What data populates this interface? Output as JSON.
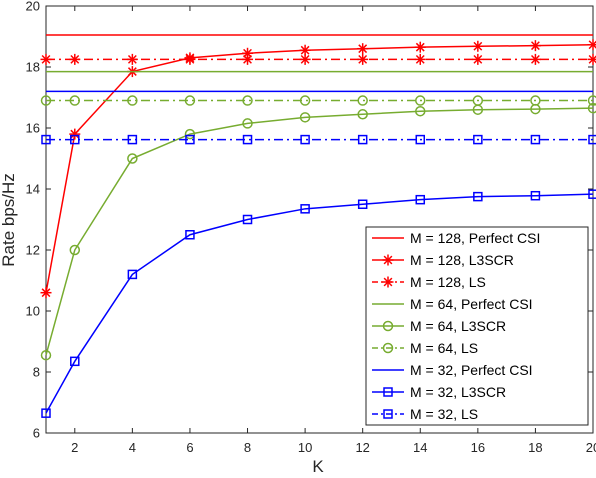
{
  "chart_data": {
    "type": "line",
    "xlabel": "K",
    "ylabel": "Rate bps/Hz",
    "xlim": [
      1,
      20
    ],
    "ylim": [
      6,
      20
    ],
    "xticks": [
      2,
      4,
      6,
      8,
      10,
      12,
      14,
      16,
      18,
      20
    ],
    "yticks": [
      6,
      8,
      10,
      12,
      14,
      16,
      18,
      20
    ],
    "grid": false,
    "legend_position": "bottom-right",
    "x": [
      1,
      2,
      4,
      6,
      8,
      10,
      12,
      14,
      16,
      18,
      20
    ],
    "series": [
      {
        "name": "M = 128, Perfect CSI",
        "color": "#ff0000",
        "dash": "solid",
        "marker": "none",
        "values": [
          19.05,
          19.05,
          19.05,
          19.05,
          19.05,
          19.05,
          19.05,
          19.05,
          19.05,
          19.05,
          19.05
        ]
      },
      {
        "name": "M = 128, L3SCR",
        "color": "#ff0000",
        "dash": "solid",
        "marker": "star",
        "values": [
          10.6,
          15.8,
          17.85,
          18.3,
          18.45,
          18.55,
          18.6,
          18.65,
          18.68,
          18.7,
          18.73
        ]
      },
      {
        "name": "M = 128, LS",
        "color": "#ff0000",
        "dash": "dashdot",
        "marker": "star",
        "values": [
          18.25,
          18.25,
          18.25,
          18.25,
          18.25,
          18.25,
          18.25,
          18.25,
          18.25,
          18.25,
          18.25
        ]
      },
      {
        "name": "M = 64, Perfect CSI",
        "color": "#77ac30",
        "dash": "solid",
        "marker": "none",
        "values": [
          17.85,
          17.85,
          17.85,
          17.85,
          17.85,
          17.85,
          17.85,
          17.85,
          17.85,
          17.85,
          17.85
        ]
      },
      {
        "name": "M = 64, L3SCR",
        "color": "#77ac30",
        "dash": "solid",
        "marker": "circle",
        "values": [
          8.55,
          12.0,
          15.0,
          15.8,
          16.15,
          16.35,
          16.45,
          16.55,
          16.6,
          16.62,
          16.65
        ]
      },
      {
        "name": "M = 64, LS",
        "color": "#77ac30",
        "dash": "dashdot",
        "marker": "circle",
        "values": [
          16.9,
          16.9,
          16.9,
          16.9,
          16.9,
          16.9,
          16.9,
          16.9,
          16.9,
          16.9,
          16.9
        ]
      },
      {
        "name": "M = 32, Perfect CSI",
        "color": "#0000ff",
        "dash": "solid",
        "marker": "none",
        "values": [
          17.2,
          17.2,
          17.2,
          17.2,
          17.2,
          17.2,
          17.2,
          17.2,
          17.2,
          17.2,
          17.2
        ]
      },
      {
        "name": "M = 32, L3SCR",
        "color": "#0000ff",
        "dash": "solid",
        "marker": "square",
        "values": [
          6.65,
          8.35,
          11.2,
          12.5,
          13.0,
          13.35,
          13.5,
          13.65,
          13.75,
          13.78,
          13.83
        ]
      },
      {
        "name": "M = 32, LS",
        "color": "#0000ff",
        "dash": "dashdot",
        "marker": "square",
        "values": [
          15.62,
          15.62,
          15.62,
          15.62,
          15.62,
          15.62,
          15.62,
          15.62,
          15.62,
          15.62,
          15.62
        ]
      }
    ]
  }
}
